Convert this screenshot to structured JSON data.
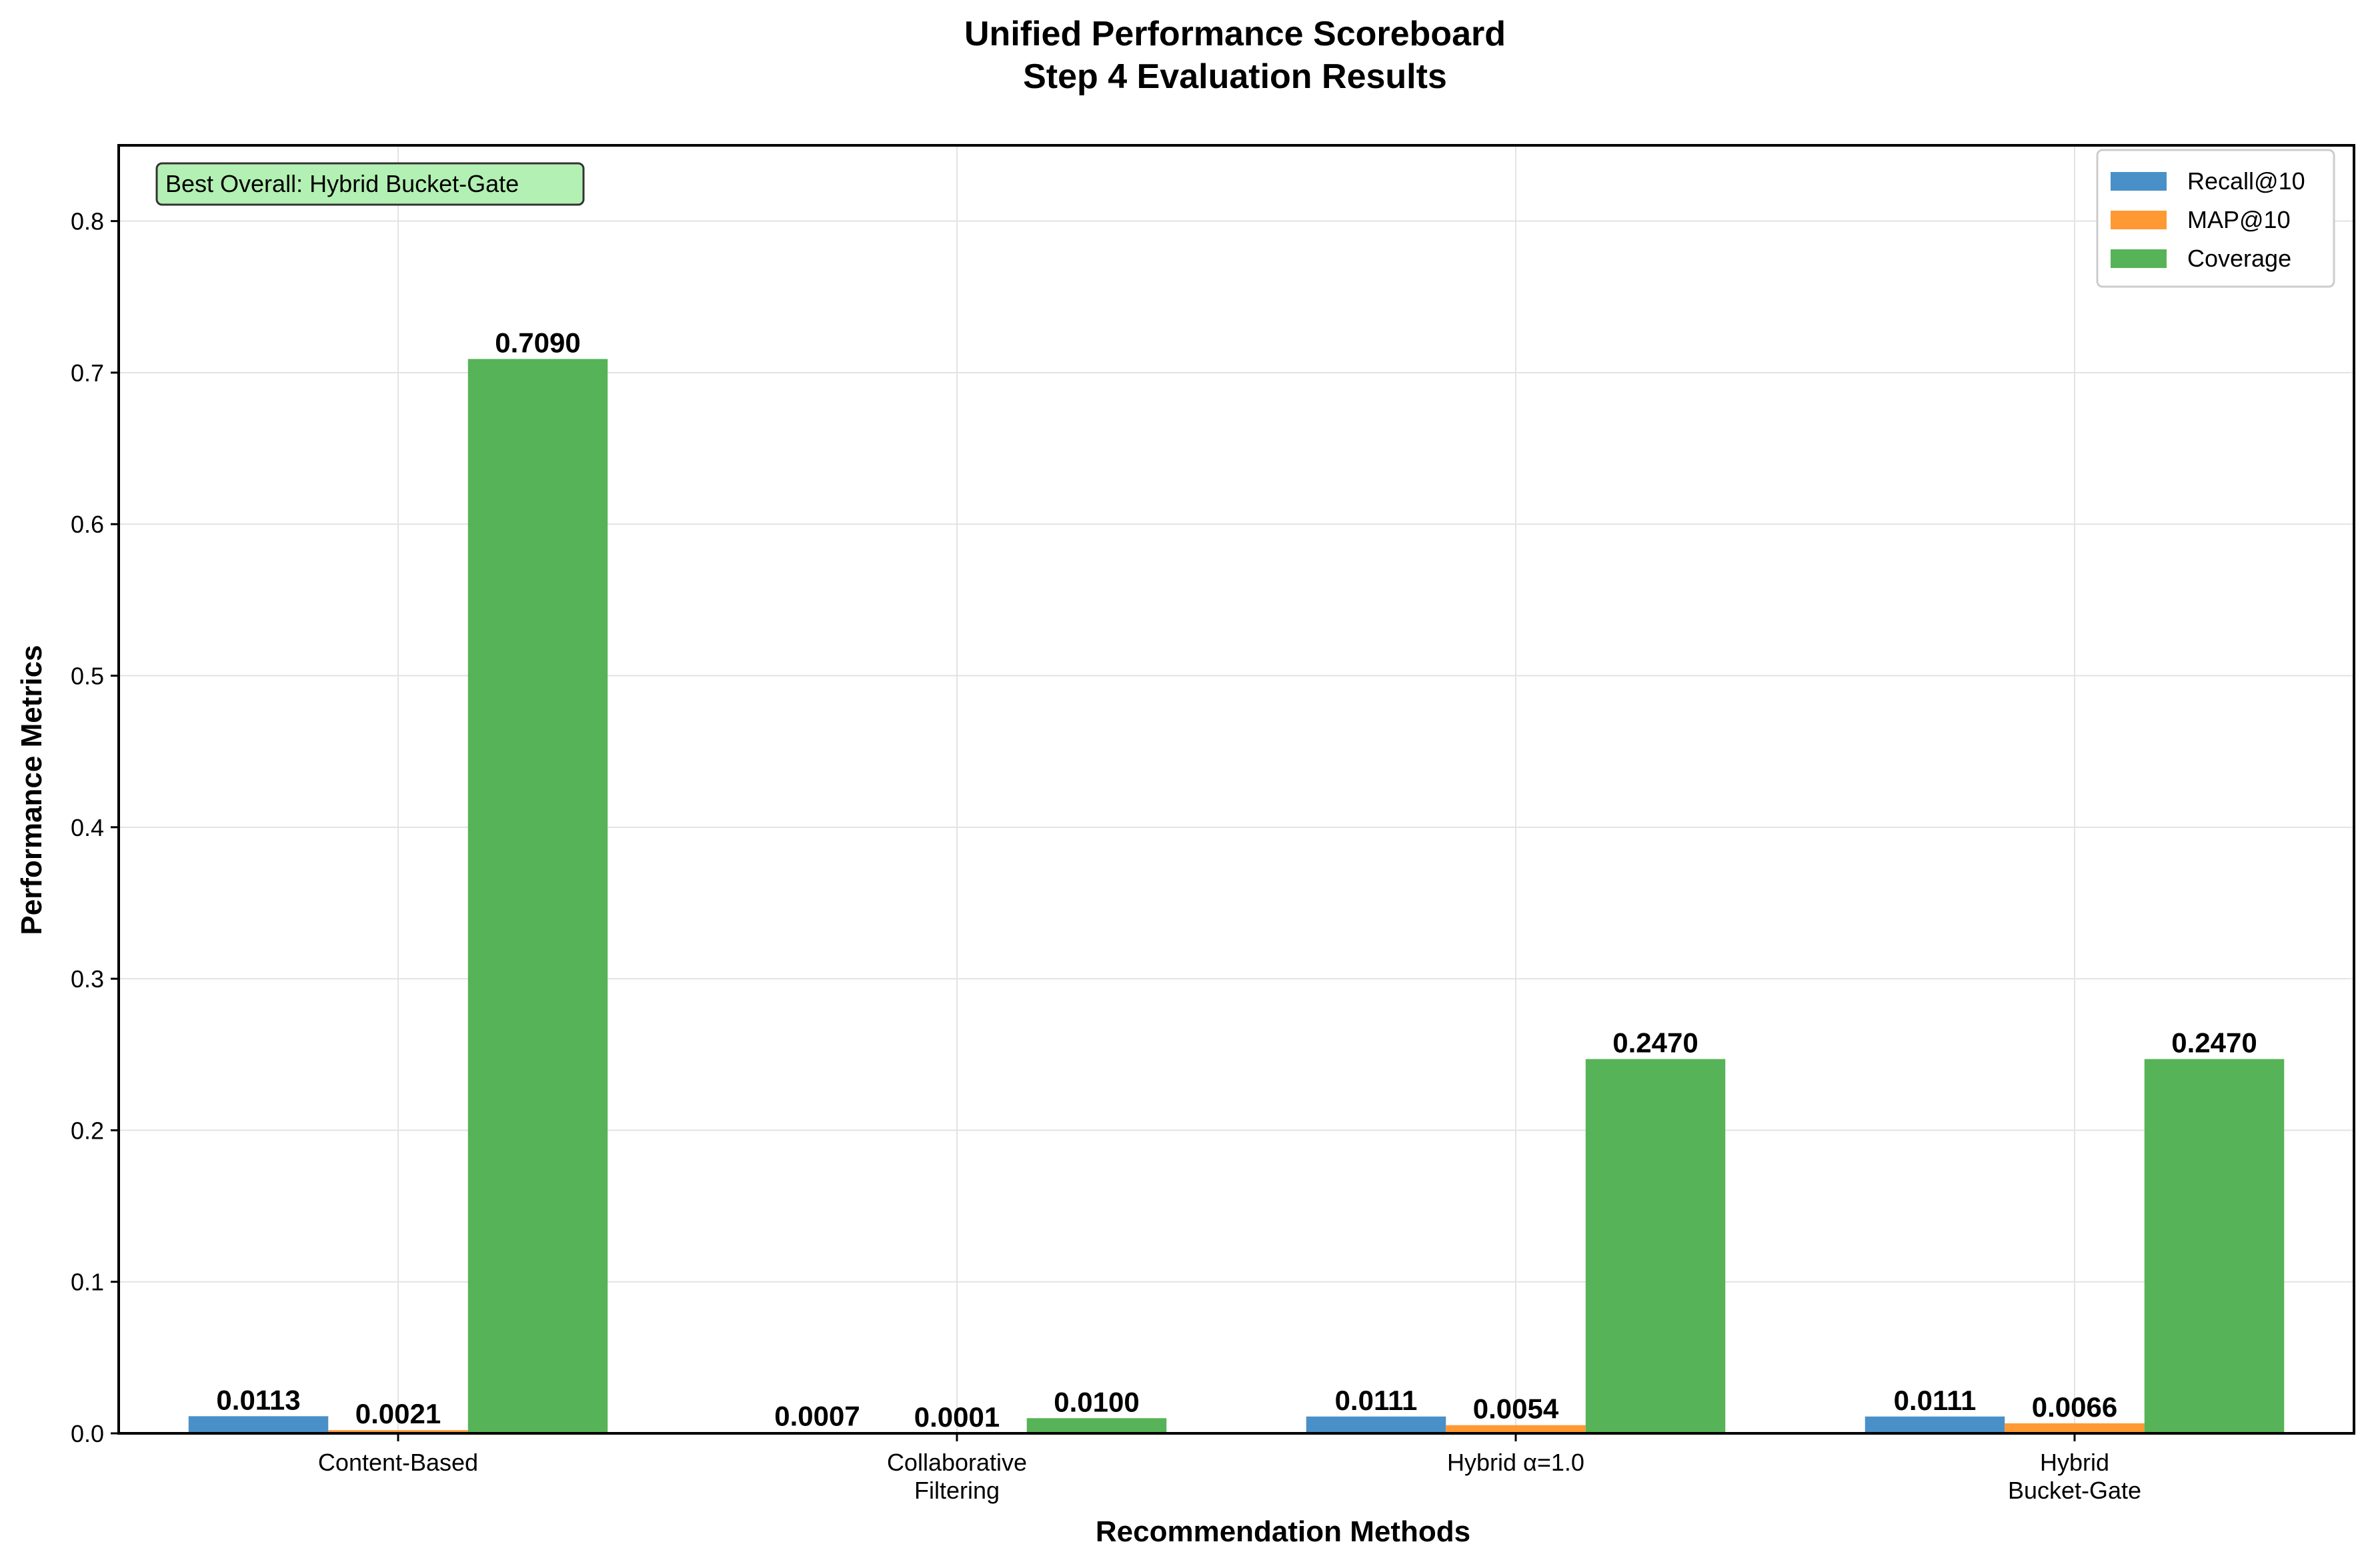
{
  "chart_data": {
    "type": "bar",
    "title": [
      "Unified Performance Scoreboard",
      "Step 4 Evaluation Results"
    ],
    "xlabel": "Recommendation Methods",
    "ylabel": "Performance Metrics",
    "categories": [
      [
        "Content-Based"
      ],
      [
        "Collaborative",
        "Filtering"
      ],
      [
        "Hybrid α=1.0"
      ],
      [
        "Hybrid",
        "Bucket-Gate"
      ]
    ],
    "series": [
      {
        "name": "Recall@10",
        "color": "#4a90c8",
        "values": [
          0.0113,
          0.0007,
          0.0111,
          0.0111
        ],
        "labels": [
          "0.0113",
          "0.0007",
          "0.0111",
          "0.0111"
        ]
      },
      {
        "name": "MAP@10",
        "color": "#ff9933",
        "values": [
          0.0021,
          0.0001,
          0.0054,
          0.0066
        ],
        "labels": [
          "0.0021",
          "0.0001",
          "0.0054",
          "0.0066"
        ]
      },
      {
        "name": "Coverage",
        "color": "#57b357",
        "values": [
          0.709,
          0.01,
          0.247,
          0.247
        ],
        "labels": [
          "0.7090",
          "0.0100",
          "0.2470",
          "0.2470"
        ]
      }
    ],
    "ylim": [
      0,
      0.85
    ],
    "yticks": [
      0.0,
      0.1,
      0.2,
      0.3,
      0.4,
      0.5,
      0.6,
      0.7,
      0.8
    ],
    "ytick_labels": [
      "0.0",
      "0.1",
      "0.2",
      "0.3",
      "0.4",
      "0.5",
      "0.6",
      "0.7",
      "0.8"
    ],
    "grid": true,
    "legend_position": "top-right",
    "annotation": {
      "text": "Best Overall: Hybrid Bucket-Gate",
      "position": "top-left",
      "background": "#b3f0b3"
    }
  }
}
